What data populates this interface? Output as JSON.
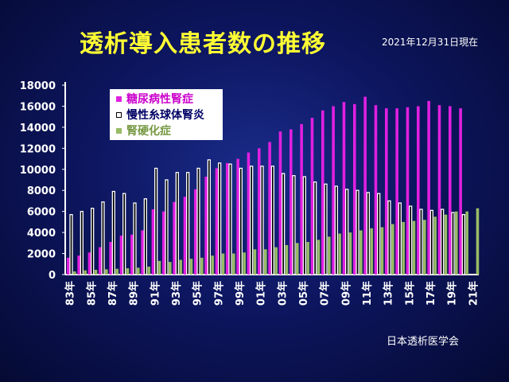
{
  "title": "透析導入患者数の推移",
  "date_note": "2021年12月31日現在",
  "source": "日本透析医学会",
  "colors": {
    "diabetes": "#e020e0",
    "glomerulo": "#000000",
    "sclerosis": "#99bb66",
    "legend_diabetes_text": "#cc00cc",
    "legend_glomerulo_text": "#000066",
    "legend_sclerosis_text": "#779944"
  },
  "chart_data": {
    "type": "bar",
    "title": "透析導入患者数の推移",
    "xlabel": "",
    "ylabel": "",
    "ylim": [
      0,
      18000
    ],
    "yticks": [
      0,
      2000,
      4000,
      6000,
      8000,
      10000,
      12000,
      14000,
      16000,
      18000
    ],
    "tick_labels": [
      "83年",
      "85年",
      "87年",
      "89年",
      "91年",
      "93年",
      "95年",
      "97年",
      "99年",
      "01年",
      "03年",
      "05年",
      "07年",
      "09年",
      "11年",
      "13年",
      "15年",
      "17年",
      "19年",
      "21年"
    ],
    "legend_position": "top-left",
    "legend": [
      "糖尿病性腎症",
      "慢性糸球体腎炎",
      "腎硬化症"
    ],
    "categories": [
      "1983",
      "1984",
      "1985",
      "1986",
      "1987",
      "1988",
      "1989",
      "1990",
      "1991",
      "1992",
      "1993",
      "1994",
      "1995",
      "1996",
      "1997",
      "1998",
      "1999",
      "2000",
      "2001",
      "2002",
      "2003",
      "2004",
      "2005",
      "2006",
      "2007",
      "2008",
      "2009",
      "2010",
      "2011",
      "2012",
      "2013",
      "2014",
      "2015",
      "2016",
      "2017",
      "2018",
      "2019",
      "2020",
      "2021"
    ],
    "series": [
      {
        "name": "糖尿病性腎症",
        "values": [
          1600,
          1800,
          2100,
          2600,
          3100,
          3700,
          3800,
          4200,
          6200,
          6000,
          6900,
          7400,
          8100,
          9300,
          10100,
          10600,
          11000,
          11600,
          12000,
          12600,
          13600,
          13800,
          14300,
          14900,
          15600,
          16000,
          16400,
          16200,
          16900,
          16100,
          15800,
          15800,
          15900,
          16000,
          16500,
          16100,
          16000,
          15800,
          null
        ]
      },
      {
        "name": "慢性糸球体腎炎",
        "values": [
          5700,
          6000,
          6300,
          6900,
          7900,
          7700,
          6800,
          7200,
          10100,
          9000,
          9700,
          9700,
          10100,
          10900,
          10600,
          10500,
          10100,
          10300,
          10300,
          10300,
          9600,
          9400,
          9300,
          8800,
          8600,
          8400,
          8100,
          8000,
          7800,
          7700,
          7000,
          6800,
          6500,
          6200,
          6100,
          6200,
          5900,
          5700,
          null
        ]
      },
      {
        "name": "腎硬化症",
        "values": [
          300,
          400,
          450,
          500,
          550,
          600,
          650,
          750,
          1300,
          1200,
          1400,
          1500,
          1600,
          1800,
          2000,
          2000,
          2100,
          2400,
          2400,
          2600,
          2800,
          3000,
          3100,
          3300,
          3600,
          3900,
          4000,
          4200,
          4400,
          4500,
          4800,
          5000,
          5100,
          5200,
          5500,
          5700,
          6000,
          6000,
          6300
        ]
      }
    ]
  }
}
